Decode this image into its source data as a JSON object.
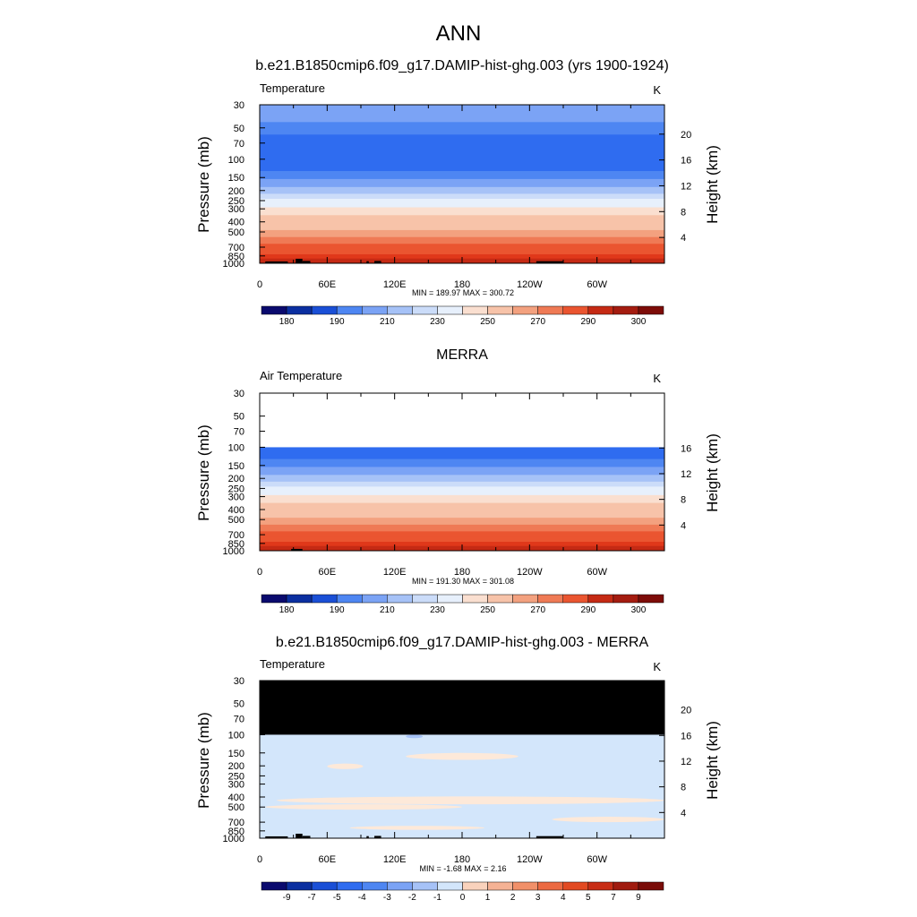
{
  "title": "ANN",
  "colors": {
    "temperature_scale": [
      "#0a0a6e",
      "#0b2fa0",
      "#1a4fd6",
      "#2f6cf0",
      "#4e86f2",
      "#7ba3f5",
      "#a6c2f7",
      "#cbdcf9",
      "#e7f0fc",
      "#fdf3ec",
      "#fadfd0",
      "#f7c3a9",
      "#f3a17f",
      "#ef7a55",
      "#ea5530",
      "#e0381a",
      "#c52a14",
      "#a41c10",
      "#7d0c08"
    ],
    "difference_scale": [
      "#0a0a6e",
      "#0b2fa0",
      "#1a4fd6",
      "#2f6cf0",
      "#4e86f2",
      "#7ba3f5",
      "#a6c2f7",
      "#d3e6fb",
      "#fde9d9",
      "#f9d2bc",
      "#f5b294",
      "#f19069",
      "#ec6a42",
      "#e24a22",
      "#c82e16",
      "#a01b0f",
      "#7a0c08"
    ],
    "diff_main": "#d3e6fb",
    "diff_warm": "#fde9d9",
    "diff_cool": "#a6c2f7",
    "masked": "#000000"
  },
  "chart_data": [
    {
      "type": "heatmap",
      "subtitle": "b.e21.B1850cmip6.f09_g17.DAMIP-hist-ghg.003 (yrs 1900-1924)",
      "variable_label": "Temperature",
      "units_label": "K",
      "ylabel": "Pressure (mb)",
      "ylabel_right": "Height (km)",
      "x_ticks": [
        "0",
        "60E",
        "120E",
        "180",
        "120W",
        "60W"
      ],
      "x_tick_values": [
        0,
        60,
        120,
        180,
        240,
        300
      ],
      "xlim": [
        0,
        360
      ],
      "y_ticks": [
        "30",
        "50",
        "70",
        "100",
        "150",
        "200",
        "250",
        "300",
        "400",
        "500",
        "700",
        "850",
        "1000"
      ],
      "y_tick_values": [
        30,
        50,
        70,
        100,
        150,
        200,
        250,
        300,
        400,
        500,
        700,
        850,
        1000
      ],
      "ylim": [
        30,
        1000
      ],
      "y_scale": "log",
      "right_ticks": [
        "20",
        "16",
        "12",
        "8",
        "4"
      ],
      "right_tick_values": [
        20,
        16,
        12,
        8,
        4
      ],
      "stats": "MIN = 189.97  MAX = 300.72",
      "colorbar_labels": [
        "180",
        "190",
        "210",
        "230",
        "250",
        "270",
        "290",
        "300"
      ],
      "colorbar_label_positions": [
        1,
        3,
        5,
        7,
        9,
        11,
        13,
        15
      ],
      "colorbar_boxes": 16,
      "colorbar_scale": "temperature_scale",
      "bands": [
        {
          "from": 30,
          "to": 44,
          "value": 210
        },
        {
          "from": 44,
          "to": 58,
          "value": 205
        },
        {
          "from": 58,
          "to": 130,
          "value": 198
        },
        {
          "from": 130,
          "to": 155,
          "value": 203
        },
        {
          "from": 155,
          "to": 185,
          "value": 210
        },
        {
          "from": 185,
          "to": 215,
          "value": 217
        },
        {
          "from": 215,
          "to": 240,
          "value": 225
        },
        {
          "from": 240,
          "to": 290,
          "value": 234
        },
        {
          "from": 290,
          "to": 345,
          "value": 245
        },
        {
          "from": 345,
          "to": 410,
          "value": 251
        },
        {
          "from": 410,
          "to": 480,
          "value": 257
        },
        {
          "from": 480,
          "to": 560,
          "value": 262
        },
        {
          "from": 560,
          "to": 650,
          "value": 268
        },
        {
          "from": 650,
          "to": 740,
          "value": 274
        },
        {
          "from": 740,
          "to": 820,
          "value": 279
        },
        {
          "from": 820,
          "to": 900,
          "value": 284
        },
        {
          "from": 900,
          "to": 960,
          "value": 289
        },
        {
          "from": 960,
          "to": 1000,
          "value": 294
        }
      ],
      "topography": [
        [
          5,
          25,
          960
        ],
        [
          32,
          38,
          905
        ],
        [
          38,
          45,
          950
        ],
        [
          95,
          97,
          955
        ],
        [
          102,
          108,
          950
        ],
        [
          246,
          270,
          955
        ]
      ]
    },
    {
      "type": "heatmap",
      "subtitle": "MERRA",
      "variable_label": "Air Temperature",
      "units_label": "K",
      "ylabel": "Pressure (mb)",
      "ylabel_right": "Height (km)",
      "x_ticks": [
        "0",
        "60E",
        "120E",
        "180",
        "120W",
        "60W"
      ],
      "x_tick_values": [
        0,
        60,
        120,
        180,
        240,
        300
      ],
      "xlim": [
        0,
        360
      ],
      "y_ticks": [
        "30",
        "50",
        "70",
        "100",
        "150",
        "200",
        "250",
        "300",
        "400",
        "500",
        "700",
        "850",
        "1000"
      ],
      "y_tick_values": [
        30,
        50,
        70,
        100,
        150,
        200,
        250,
        300,
        400,
        500,
        700,
        850,
        1000
      ],
      "ylim": [
        30,
        1000
      ],
      "y_scale": "log",
      "right_ticks": [
        "16",
        "12",
        "8",
        "4"
      ],
      "right_tick_values": [
        16,
        12,
        8,
        4
      ],
      "stats": "MIN = 191.30  MAX = 301.08",
      "colorbar_labels": [
        "180",
        "190",
        "210",
        "230",
        "250",
        "270",
        "290",
        "300"
      ],
      "colorbar_label_positions": [
        1,
        3,
        5,
        7,
        9,
        11,
        13,
        15
      ],
      "colorbar_boxes": 16,
      "colorbar_scale": "temperature_scale",
      "bands": [
        {
          "from": 100,
          "to": 130,
          "value": 198
        },
        {
          "from": 130,
          "to": 155,
          "value": 203
        },
        {
          "from": 155,
          "to": 185,
          "value": 210
        },
        {
          "from": 185,
          "to": 215,
          "value": 217
        },
        {
          "from": 215,
          "to": 240,
          "value": 225
        },
        {
          "from": 240,
          "to": 290,
          "value": 234
        },
        {
          "from": 290,
          "to": 345,
          "value": 245
        },
        {
          "from": 345,
          "to": 410,
          "value": 251
        },
        {
          "from": 410,
          "to": 480,
          "value": 257
        },
        {
          "from": 480,
          "to": 560,
          "value": 262
        },
        {
          "from": 560,
          "to": 650,
          "value": 268
        },
        {
          "from": 650,
          "to": 740,
          "value": 274
        },
        {
          "from": 740,
          "to": 820,
          "value": 279
        },
        {
          "from": 820,
          "to": 900,
          "value": 284
        },
        {
          "from": 900,
          "to": 960,
          "value": 289
        },
        {
          "from": 960,
          "to": 1000,
          "value": 294
        }
      ],
      "topography": [
        [
          28,
          38,
          960
        ]
      ]
    },
    {
      "type": "heatmap",
      "subtitle": "b.e21.B1850cmip6.f09_g17.DAMIP-hist-ghg.003 - MERRA",
      "variable_label": "Temperature",
      "units_label": "K",
      "ylabel": "Pressure (mb)",
      "ylabel_right": "Height (km)",
      "x_ticks": [
        "0",
        "60E",
        "120E",
        "180",
        "120W",
        "60W"
      ],
      "x_tick_values": [
        0,
        60,
        120,
        180,
        240,
        300
      ],
      "xlim": [
        0,
        360
      ],
      "y_ticks": [
        "30",
        "50",
        "70",
        "100",
        "150",
        "200",
        "250",
        "300",
        "400",
        "500",
        "700",
        "850",
        "1000"
      ],
      "y_tick_values": [
        30,
        50,
        70,
        100,
        150,
        200,
        250,
        300,
        400,
        500,
        700,
        850,
        1000
      ],
      "ylim": [
        30,
        1000
      ],
      "y_scale": "log",
      "right_ticks": [
        "20",
        "16",
        "12",
        "8",
        "4"
      ],
      "right_tick_values": [
        20,
        16,
        12,
        8,
        4
      ],
      "stats": "MIN = -1.68  MAX =  2.16",
      "colorbar_labels": [
        "-9",
        "-7",
        "-5",
        "-4",
        "-3",
        "-2",
        "-1",
        "0",
        "1",
        "2",
        "3",
        "4",
        "5",
        "7",
        "9"
      ],
      "colorbar_label_positions": [
        1,
        2,
        3,
        4,
        5,
        6,
        7,
        8,
        9,
        10,
        11,
        12,
        13,
        14,
        15
      ],
      "colorbar_boxes": 16,
      "colorbar_scale": "difference_scale",
      "masked_above": 100,
      "regions": [
        {
          "kind": "cool",
          "lon": [
            130,
            145
          ],
          "p": [
            100,
            108
          ]
        },
        {
          "kind": "warm",
          "lon": [
            130,
            230
          ],
          "p": [
            150,
            175
          ]
        },
        {
          "kind": "warm",
          "lon": [
            60,
            92
          ],
          "p": [
            190,
            215
          ]
        },
        {
          "kind": "warm",
          "lon": [
            15,
            360
          ],
          "p": [
            395,
            470
          ]
        },
        {
          "kind": "warm",
          "lon": [
            5,
            180
          ],
          "p": [
            470,
            530
          ]
        },
        {
          "kind": "warm",
          "lon": [
            260,
            360
          ],
          "p": [
            620,
            700
          ]
        },
        {
          "kind": "warm",
          "lon": [
            80,
            200
          ],
          "p": [
            760,
            830
          ]
        }
      ],
      "topography": [
        [
          5,
          25,
          960
        ],
        [
          32,
          38,
          905
        ],
        [
          38,
          45,
          950
        ],
        [
          95,
          97,
          955
        ],
        [
          102,
          108,
          950
        ],
        [
          246,
          270,
          955
        ]
      ]
    }
  ]
}
